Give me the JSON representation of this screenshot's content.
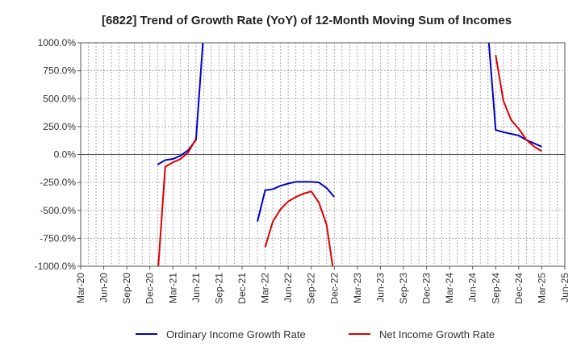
{
  "chart_data": {
    "type": "line",
    "title": "[6822]  Trend of Growth Rate (YoY) of 12-Month Moving Sum of Incomes",
    "xlabel": "",
    "ylabel": "",
    "x_ticks": [
      "Mar-20",
      "Jun-20",
      "Sep-20",
      "Dec-20",
      "Mar-21",
      "Jun-21",
      "Sep-21",
      "Dec-21",
      "Mar-22",
      "Jun-22",
      "Sep-22",
      "Dec-22",
      "Mar-23",
      "Jun-23",
      "Sep-23",
      "Dec-23",
      "Mar-24",
      "Jun-24",
      "Sep-24",
      "Dec-24",
      "Mar-25",
      "Jun-25"
    ],
    "y_ticks": [
      {
        "value": 1000,
        "label": "1000.0%"
      },
      {
        "value": 750,
        "label": "750.0%"
      },
      {
        "value": 500,
        "label": "500.0%"
      },
      {
        "value": 250,
        "label": "250.0%"
      },
      {
        "value": 0,
        "label": "0.0%"
      },
      {
        "value": -250,
        "label": "-250.0%"
      },
      {
        "value": -500,
        "label": "-500.0%"
      },
      {
        "value": -750,
        "label": "-750.0%"
      },
      {
        "value": -1000,
        "label": "-1000.0%"
      }
    ],
    "ylim": [
      -1000,
      1000
    ],
    "grid": true,
    "legend_position": "bottom",
    "series": [
      {
        "name": "Ordinary Income Growth Rate",
        "color": "#0000cc",
        "segments": [
          [
            [
              "Jan-21",
              -90
            ],
            [
              "Feb-21",
              -50
            ],
            [
              "Mar-21",
              -40
            ],
            [
              "Apr-21",
              -10
            ],
            [
              "May-21",
              40
            ],
            [
              "Jun-21",
              130
            ],
            [
              "Jul-21",
              1100
            ]
          ],
          [
            [
              "Feb-22",
              -600
            ],
            [
              "Mar-22",
              -320
            ],
            [
              "Apr-22",
              -310
            ],
            [
              "May-22",
              -280
            ],
            [
              "Jun-22",
              -260
            ],
            [
              "Jul-22",
              -245
            ],
            [
              "Aug-22",
              -245
            ],
            [
              "Sep-22",
              -245
            ],
            [
              "Oct-22",
              -250
            ],
            [
              "Nov-22",
              -300
            ],
            [
              "Dec-22",
              -380
            ]
          ],
          [
            [
              "Aug-24",
              1100
            ],
            [
              "Sep-24",
              220
            ],
            [
              "Oct-24",
              200
            ],
            [
              "Nov-24",
              185
            ],
            [
              "Dec-24",
              170
            ],
            [
              "Jan-25",
              130
            ],
            [
              "Feb-25",
              100
            ],
            [
              "Mar-25",
              70
            ]
          ]
        ]
      },
      {
        "name": "Net Income Growth Rate",
        "color": "#dd0000",
        "segments": [
          [
            [
              "Jan-21",
              -1100
            ],
            [
              "Feb-21",
              -110
            ],
            [
              "Mar-21",
              -70
            ],
            [
              "Apr-21",
              -40
            ],
            [
              "May-21",
              20
            ],
            [
              "Jun-21",
              140
            ]
          ],
          [
            [
              "Mar-22",
              -830
            ],
            [
              "Apr-22",
              -600
            ],
            [
              "May-22",
              -490
            ],
            [
              "Jun-22",
              -420
            ],
            [
              "Jul-22",
              -380
            ],
            [
              "Aug-22",
              -350
            ],
            [
              "Sep-22",
              -330
            ],
            [
              "Oct-22",
              -430
            ],
            [
              "Nov-22",
              -630
            ],
            [
              "Dec-22",
              -1100
            ]
          ],
          [
            [
              "Sep-24",
              890
            ],
            [
              "Oct-24",
              480
            ],
            [
              "Nov-24",
              310
            ],
            [
              "Dec-24",
              230
            ],
            [
              "Jan-25",
              130
            ],
            [
              "Feb-25",
              70
            ],
            [
              "Mar-25",
              30
            ]
          ]
        ]
      }
    ]
  }
}
